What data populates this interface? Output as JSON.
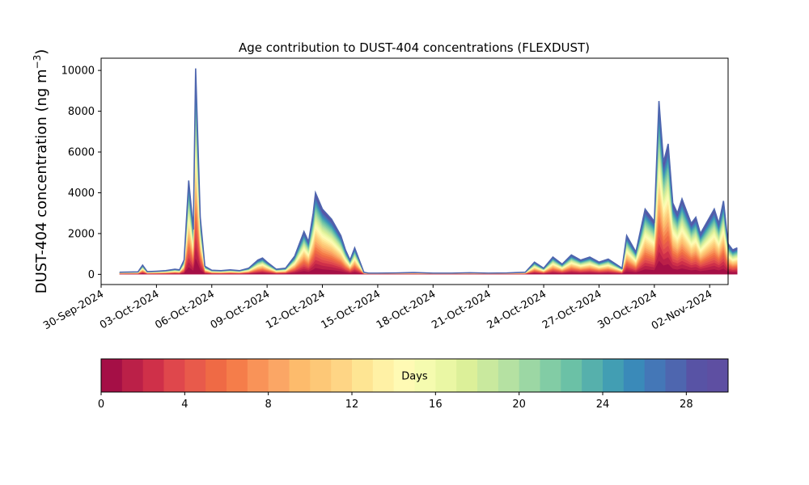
{
  "chart_data": {
    "type": "area",
    "title": "Age contribution to DUST-404 concentrations (FLEXDUST)",
    "ylabel_main": "DUST-404 concentration (ng m",
    "ylabel_sup": "−3",
    "ylabel_close": ")",
    "xlabel": "",
    "x_start": "2024-10-01",
    "x_end": "2024-11-01",
    "xlim": [
      "2024-09-30",
      "2024-11-03"
    ],
    "ylim": [
      -500,
      10600
    ],
    "yticks": [
      0,
      2000,
      4000,
      6000,
      8000,
      10000
    ],
    "xtick_labels": [
      "30-Sep-2024",
      "03-Oct-2024",
      "06-Oct-2024",
      "09-Oct-2024",
      "12-Oct-2024",
      "15-Oct-2024",
      "18-Oct-2024",
      "21-Oct-2024",
      "24-Oct-2024",
      "27-Oct-2024",
      "30-Oct-2024",
      "02-Nov-2024"
    ],
    "total_points": [
      [
        "2024-10-01T00:00",
        100
      ],
      [
        "2024-10-01T12:00",
        110
      ],
      [
        "2024-10-02T00:00",
        120
      ],
      [
        "2024-10-02T06:00",
        450
      ],
      [
        "2024-10-02T12:00",
        130
      ],
      [
        "2024-10-03T00:00",
        150
      ],
      [
        "2024-10-03T12:00",
        180
      ],
      [
        "2024-10-04T00:00",
        250
      ],
      [
        "2024-10-04T06:00",
        220
      ],
      [
        "2024-10-04T12:00",
        700
      ],
      [
        "2024-10-04T18:00",
        4600
      ],
      [
        "2024-10-05T00:00",
        2200
      ],
      [
        "2024-10-05T03:00",
        10100
      ],
      [
        "2024-10-05T09:00",
        2800
      ],
      [
        "2024-10-05T15:00",
        400
      ],
      [
        "2024-10-06T00:00",
        200
      ],
      [
        "2024-10-06T12:00",
        180
      ],
      [
        "2024-10-07T00:00",
        220
      ],
      [
        "2024-10-07T12:00",
        180
      ],
      [
        "2024-10-08T00:00",
        300
      ],
      [
        "2024-10-08T12:00",
        700
      ],
      [
        "2024-10-08T18:00",
        800
      ],
      [
        "2024-10-09T00:00",
        600
      ],
      [
        "2024-10-09T12:00",
        250
      ],
      [
        "2024-10-10T00:00",
        300
      ],
      [
        "2024-10-10T12:00",
        900
      ],
      [
        "2024-10-11T00:00",
        2100
      ],
      [
        "2024-10-11T06:00",
        1600
      ],
      [
        "2024-10-11T12:00",
        3000
      ],
      [
        "2024-10-11T15:00",
        4000
      ],
      [
        "2024-10-12T00:00",
        3200
      ],
      [
        "2024-10-12T12:00",
        2700
      ],
      [
        "2024-10-13T00:00",
        1900
      ],
      [
        "2024-10-13T06:00",
        1200
      ],
      [
        "2024-10-13T12:00",
        700
      ],
      [
        "2024-10-13T18:00",
        1300
      ],
      [
        "2024-10-14T06:00",
        100
      ],
      [
        "2024-10-14T12:00",
        60
      ],
      [
        "2024-10-15T00:00",
        60
      ],
      [
        "2024-10-16T00:00",
        70
      ],
      [
        "2024-10-17T00:00",
        90
      ],
      [
        "2024-10-18T00:00",
        60
      ],
      [
        "2024-10-19T00:00",
        60
      ],
      [
        "2024-10-20T00:00",
        80
      ],
      [
        "2024-10-21T00:00",
        60
      ],
      [
        "2024-10-22T00:00",
        70
      ],
      [
        "2024-10-23T00:00",
        100
      ],
      [
        "2024-10-23T12:00",
        600
      ],
      [
        "2024-10-24T00:00",
        300
      ],
      [
        "2024-10-24T12:00",
        850
      ],
      [
        "2024-10-25T00:00",
        500
      ],
      [
        "2024-10-25T12:00",
        950
      ],
      [
        "2024-10-26T00:00",
        700
      ],
      [
        "2024-10-26T12:00",
        850
      ],
      [
        "2024-10-27T00:00",
        600
      ],
      [
        "2024-10-27T12:00",
        750
      ],
      [
        "2024-10-28T00:00",
        450
      ],
      [
        "2024-10-28T06:00",
        300
      ],
      [
        "2024-10-28T12:00",
        1900
      ],
      [
        "2024-10-29T00:00",
        1100
      ],
      [
        "2024-10-29T12:00",
        3200
      ],
      [
        "2024-10-30T00:00",
        2600
      ],
      [
        "2024-10-30T06:00",
        8500
      ],
      [
        "2024-10-30T12:00",
        5500
      ],
      [
        "2024-10-30T18:00",
        6400
      ],
      [
        "2024-10-31T00:00",
        3500
      ],
      [
        "2024-10-31T06:00",
        3000
      ],
      [
        "2024-10-31T12:00",
        3700
      ],
      [
        "2024-11-01T00:00",
        2500
      ],
      [
        "2024-11-01T06:00",
        2800
      ],
      [
        "2024-11-01T12:00",
        2000
      ],
      [
        "2024-11-02T00:00",
        2800
      ],
      [
        "2024-11-02T06:00",
        3200
      ],
      [
        "2024-11-02T12:00",
        2500
      ],
      [
        "2024-11-02T18:00",
        3600
      ],
      [
        "2024-11-03T00:00",
        1500
      ],
      [
        "2024-11-03T06:00",
        1200
      ],
      [
        "2024-11-03T12:00",
        1300
      ]
    ],
    "colorbar": {
      "label": "Days",
      "range": [
        0,
        30
      ],
      "ticks": [
        0,
        4,
        8,
        12,
        16,
        20,
        24,
        28
      ],
      "colors": [
        "#a50f46",
        "#bb2048",
        "#cf3049",
        "#df474c",
        "#e85a4b",
        "#ef6a45",
        "#f57d4a",
        "#f99358",
        "#fba665",
        "#fdbb6c",
        "#fdc877",
        "#fed585",
        "#fee593",
        "#fff1a5",
        "#fffab4",
        "#f5fbaf",
        "#eaf7a4",
        "#dcf099",
        "#c9e99e",
        "#b5e1a2",
        "#9cd7a4",
        "#82cca5",
        "#6bc1a6",
        "#56b0ac",
        "#429eb3",
        "#3a8ab9",
        "#4477b7",
        "#4e66af",
        "#5853a5",
        "#5e4fa2"
      ]
    }
  }
}
